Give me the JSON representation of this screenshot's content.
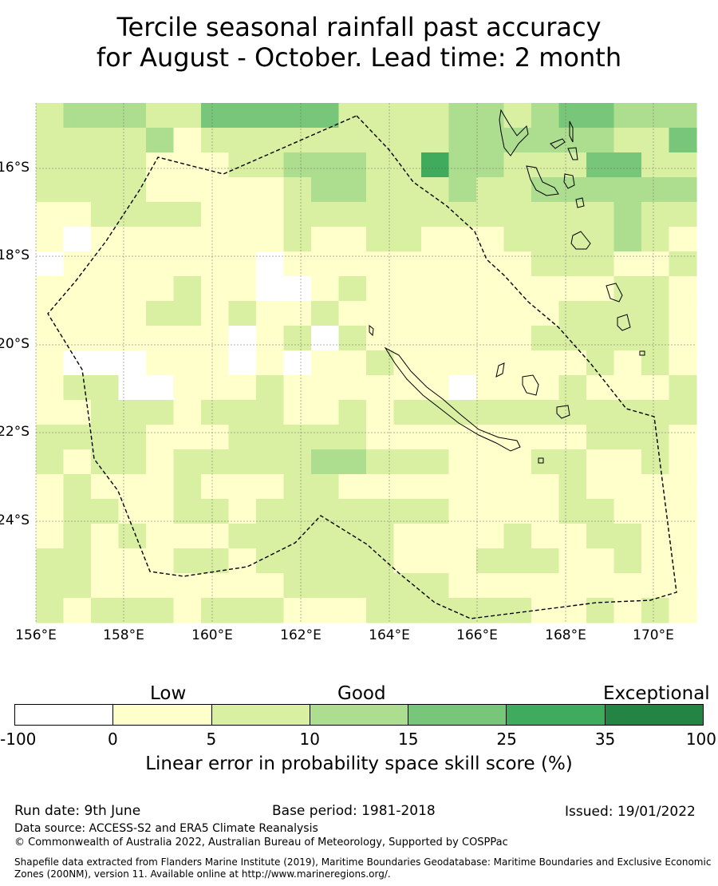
{
  "title": {
    "line1": "Tercile seasonal rainfall past accuracy",
    "line2": "for August - October. Lead time: 2 month"
  },
  "map": {
    "lat_labels": [
      "16°S",
      "18°S",
      "20°S",
      "22°S",
      "24°S"
    ],
    "lon_labels": [
      "156°E",
      "158°E",
      "160°E",
      "162°E",
      "164°E",
      "166°E",
      "168°E",
      "170°E"
    ],
    "skill_grid_classes": [
      "233322444442222332344333",
      "222231222222222333333224",
      "222211122333225332224422",
      "222211111233222322333333",
      "112222111222222222222322",
      "101111111211221112222321",
      "011111110111111111222112",
      "111112110012111111111221",
      "111122121121111111122221",
      "111111101202111111222221",
      "100011101011211111112121",
      "122001112111111011121112",
      "112221222112122222222222",
      "222211122222111111112221",
      "212212222233222111221121",
      "121112111221111111121111",
      "122112212222222111122111",
      "121211122222211112112211",
      "221112212222211122211211",
      "221111111222222111111111",
      "212221222111222222112121"
    ],
    "legend_colors": [
      "#ffffff",
      "#ffffcc",
      "#d9f0a3",
      "#addd8e",
      "#78c679",
      "#41ab5d",
      "#238443"
    ]
  },
  "colorbar": {
    "categories": [
      "Low",
      "Good",
      "Exceptional"
    ],
    "ticks": [
      "-100",
      "0",
      "5",
      "10",
      "15",
      "25",
      "35",
      "100"
    ],
    "title": "Linear error in probability space skill score (%)"
  },
  "footer": {
    "run_date": "Run date: 9th June",
    "base_period": "Base period: 1981-2018",
    "issued": "Issued: 19/01/2022",
    "data_source": "Data source: ACCESS-S2 and ERA5 Climate Reanalysis",
    "copyright": "© Commonwealth of Australia 2022, Australian Bureau of Meteorology, Supported by COSPPac",
    "shapefile_line1": "Shapefile data extracted from Flanders Marine Institute (2019), Maritime Boundaries Geodatabase: Maritime Boundaries and Exclusive Economic",
    "shapefile_line2": "Zones (200NM), version 11. Available online at http://www.marineregions.org/."
  }
}
